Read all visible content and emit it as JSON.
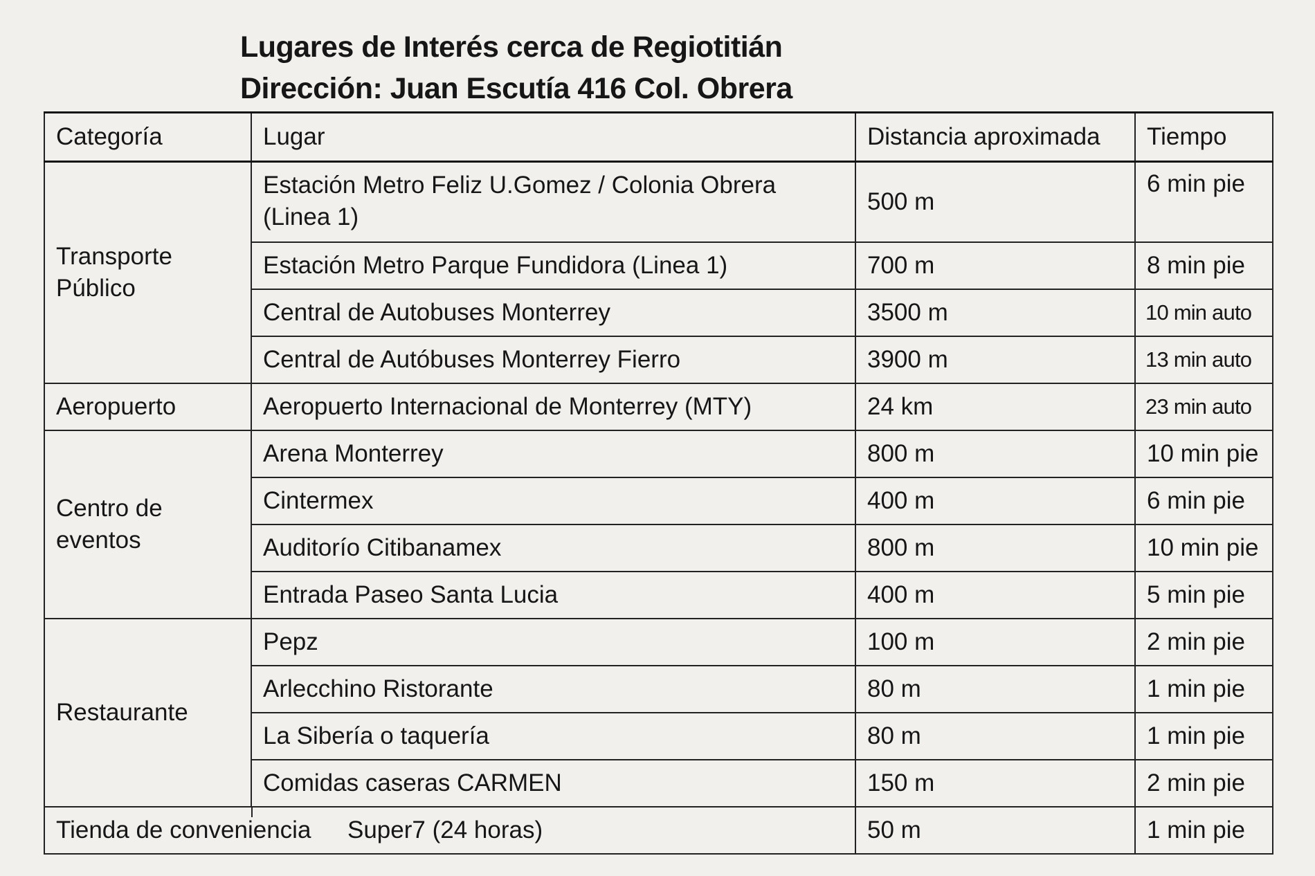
{
  "title": {
    "line1": "Lugares de Interés cerca de Regiotitián",
    "line2": "Dirección: Juan Escutía 416 Col. Obrera"
  },
  "table": {
    "headers": [
      "Categoría",
      "Lugar",
      "Distancia aproximada",
      "Tiempo"
    ],
    "groups": [
      {
        "category": "Transporte Público",
        "rows": [
          {
            "lugar": "Estación Metro Feliz U.Gomez / Colonia Obrera (Linea 1)",
            "distancia": "500 m",
            "tiempo": "6 min pie"
          },
          {
            "lugar": "Estación Metro Parque Fundidora (Linea 1)",
            "distancia": "700 m",
            "tiempo": "8 min pie"
          },
          {
            "lugar": "Central de Autobuses Monterrey",
            "distancia": "3500 m",
            "tiempo": "10 min auto"
          },
          {
            "lugar": "Central de Autóbuses Monterrey Fierro",
            "distancia": "3900 m",
            "tiempo": "13 min auto"
          }
        ]
      },
      {
        "category": "Aeropuerto",
        "rows": [
          {
            "lugar": "Aeropuerto Internacional de Monterrey (MTY)",
            "distancia": "24 km",
            "tiempo": "23 min auto"
          }
        ]
      },
      {
        "category": "Centro de eventos",
        "rows": [
          {
            "lugar": "Arena Monterrey",
            "distancia": "800 m",
            "tiempo": "10 min pie"
          },
          {
            "lugar": "Cintermex",
            "distancia": "400 m",
            "tiempo": "6 min pie"
          },
          {
            "lugar": "Auditorío Citibanamex",
            "distancia": "800 m",
            "tiempo": "10 min pie"
          },
          {
            "lugar": "Entrada Paseo Santa Lucia",
            "distancia": "400 m",
            "tiempo": "5 min pie"
          }
        ]
      },
      {
        "category": "Restaurante",
        "rows": [
          {
            "lugar": "Pepz",
            "distancia": "100 m",
            "tiempo": "2 min pie"
          },
          {
            "lugar": "Arlecchino Ristorante",
            "distancia": "80 m",
            "tiempo": "1 min pie"
          },
          {
            "lugar": "La Sibería o taquería",
            "distancia": "80 m",
            "tiempo": "1 min pie"
          },
          {
            "lugar": "Comidas caseras CARMEN",
            "distancia": "150 m",
            "tiempo": "2 min pie"
          }
        ]
      },
      {
        "category": "Tienda de conveniencia",
        "rows": [
          {
            "lugar": "Super7 (24 horas)",
            "distancia": "50 m",
            "tiempo": "1 min pie"
          }
        ]
      }
    ]
  }
}
